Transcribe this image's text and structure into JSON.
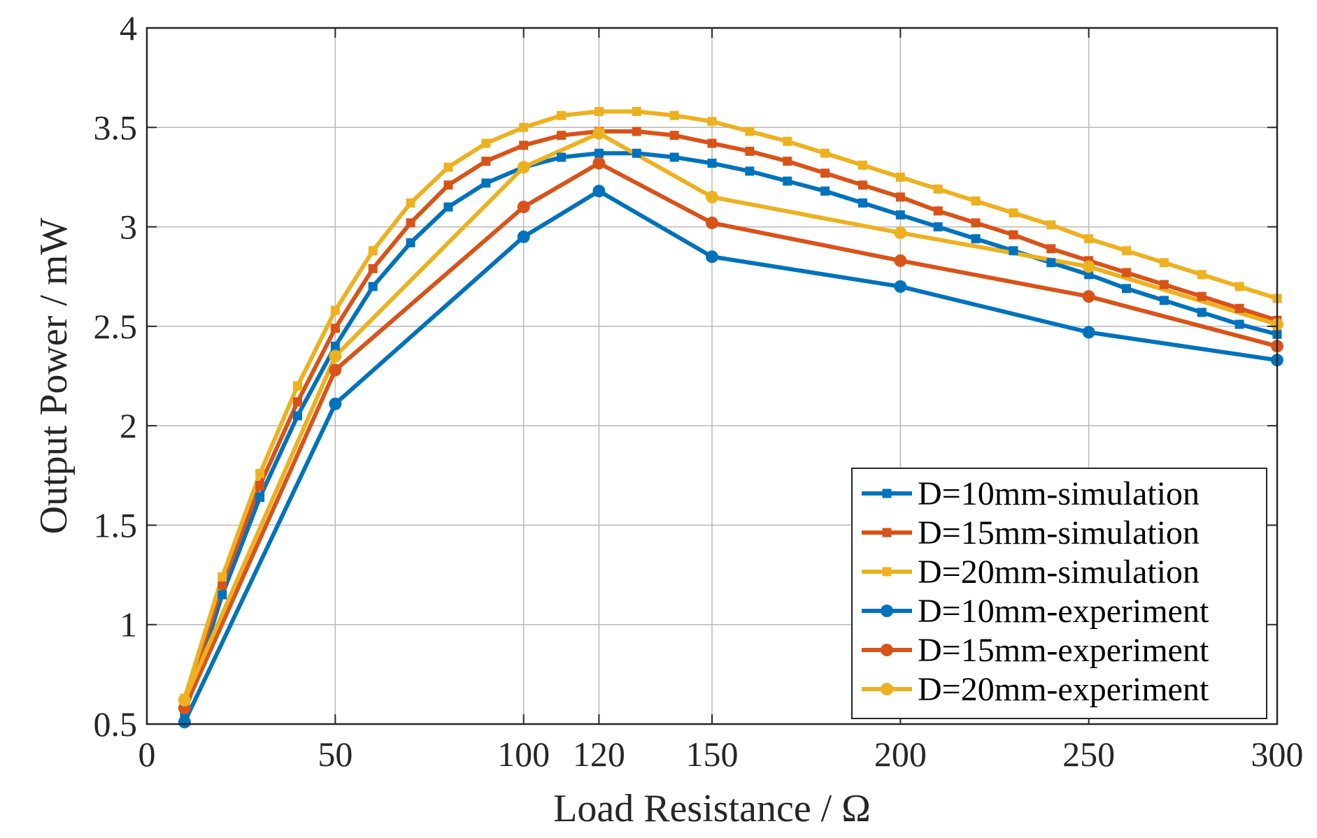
{
  "chart_data": {
    "type": "line",
    "title": "",
    "xlabel": "Load Resistance / Ω",
    "ylabel": "Output Power / mW",
    "xlim": [
      0,
      300
    ],
    "ylim": [
      0.5,
      4
    ],
    "xticks": [
      0,
      50,
      100,
      120,
      150,
      200,
      250,
      300
    ],
    "xtick_labels": [
      "0",
      "50",
      "100",
      "120",
      "150",
      "200",
      "250",
      "300"
    ],
    "yticks": [
      0.5,
      1,
      1.5,
      2,
      2.5,
      3,
      3.5,
      4
    ],
    "ytick_labels": [
      "0.5",
      "1",
      "1.5",
      "2",
      "2.5",
      "3",
      "3.5",
      "4"
    ],
    "grid": true,
    "legend_position": "bottom-right",
    "series": [
      {
        "name": "D=10mm-simulation",
        "color": "#0072BD",
        "marker": "square",
        "points": [
          [
            10,
            0.55
          ],
          [
            20,
            1.15
          ],
          [
            30,
            1.64
          ],
          [
            40,
            2.05
          ],
          [
            50,
            2.4
          ],
          [
            60,
            2.7
          ],
          [
            70,
            2.92
          ],
          [
            80,
            3.1
          ],
          [
            90,
            3.22
          ],
          [
            100,
            3.3
          ],
          [
            110,
            3.35
          ],
          [
            120,
            3.37
          ],
          [
            130,
            3.37
          ],
          [
            140,
            3.35
          ],
          [
            150,
            3.32
          ],
          [
            160,
            3.28
          ],
          [
            170,
            3.23
          ],
          [
            180,
            3.18
          ],
          [
            190,
            3.12
          ],
          [
            200,
            3.06
          ],
          [
            210,
            3.0
          ],
          [
            220,
            2.94
          ],
          [
            230,
            2.88
          ],
          [
            240,
            2.82
          ],
          [
            250,
            2.76
          ],
          [
            260,
            2.69
          ],
          [
            270,
            2.63
          ],
          [
            280,
            2.57
          ],
          [
            290,
            2.51
          ],
          [
            300,
            2.46
          ]
        ]
      },
      {
        "name": "D=15mm-simulation",
        "color": "#D95319",
        "marker": "square",
        "points": [
          [
            10,
            0.59
          ],
          [
            20,
            1.2
          ],
          [
            30,
            1.7
          ],
          [
            40,
            2.12
          ],
          [
            50,
            2.49
          ],
          [
            60,
            2.79
          ],
          [
            70,
            3.02
          ],
          [
            80,
            3.21
          ],
          [
            90,
            3.33
          ],
          [
            100,
            3.41
          ],
          [
            110,
            3.46
          ],
          [
            120,
            3.48
          ],
          [
            130,
            3.48
          ],
          [
            140,
            3.46
          ],
          [
            150,
            3.42
          ],
          [
            160,
            3.38
          ],
          [
            170,
            3.33
          ],
          [
            180,
            3.27
          ],
          [
            190,
            3.21
          ],
          [
            200,
            3.15
          ],
          [
            210,
            3.08
          ],
          [
            220,
            3.02
          ],
          [
            230,
            2.96
          ],
          [
            240,
            2.89
          ],
          [
            250,
            2.83
          ],
          [
            260,
            2.77
          ],
          [
            270,
            2.71
          ],
          [
            280,
            2.65
          ],
          [
            290,
            2.59
          ],
          [
            300,
            2.53
          ]
        ]
      },
      {
        "name": "D=20mm-simulation",
        "color": "#EDB120",
        "marker": "square",
        "points": [
          [
            10,
            0.63
          ],
          [
            20,
            1.24
          ],
          [
            30,
            1.76
          ],
          [
            40,
            2.2
          ],
          [
            50,
            2.58
          ],
          [
            60,
            2.88
          ],
          [
            70,
            3.12
          ],
          [
            80,
            3.3
          ],
          [
            90,
            3.42
          ],
          [
            100,
            3.5
          ],
          [
            110,
            3.56
          ],
          [
            120,
            3.58
          ],
          [
            130,
            3.58
          ],
          [
            140,
            3.56
          ],
          [
            150,
            3.53
          ],
          [
            160,
            3.48
          ],
          [
            170,
            3.43
          ],
          [
            180,
            3.37
          ],
          [
            190,
            3.31
          ],
          [
            200,
            3.25
          ],
          [
            210,
            3.19
          ],
          [
            220,
            3.13
          ],
          [
            230,
            3.07
          ],
          [
            240,
            3.01
          ],
          [
            250,
            2.94
          ],
          [
            260,
            2.88
          ],
          [
            270,
            2.82
          ],
          [
            280,
            2.76
          ],
          [
            290,
            2.7
          ],
          [
            300,
            2.64
          ]
        ]
      },
      {
        "name": "D=10mm-experiment",
        "color": "#0072BD",
        "marker": "circle",
        "points": [
          [
            10,
            0.51
          ],
          [
            50,
            2.11
          ],
          [
            100,
            2.95
          ],
          [
            120,
            3.18
          ],
          [
            150,
            2.85
          ],
          [
            200,
            2.7
          ],
          [
            250,
            2.47
          ],
          [
            300,
            2.33
          ]
        ]
      },
      {
        "name": "D=15mm-experiment",
        "color": "#D95319",
        "marker": "circle",
        "points": [
          [
            10,
            0.58
          ],
          [
            50,
            2.28
          ],
          [
            100,
            3.1
          ],
          [
            120,
            3.32
          ],
          [
            150,
            3.02
          ],
          [
            200,
            2.83
          ],
          [
            250,
            2.65
          ],
          [
            300,
            2.4
          ]
        ]
      },
      {
        "name": "D=20mm-experiment",
        "color": "#EDB120",
        "marker": "circle",
        "points": [
          [
            10,
            0.62
          ],
          [
            50,
            2.35
          ],
          [
            100,
            3.3
          ],
          [
            120,
            3.47
          ],
          [
            150,
            3.15
          ],
          [
            200,
            2.97
          ],
          [
            250,
            2.8
          ],
          [
            300,
            2.51
          ]
        ]
      }
    ]
  }
}
